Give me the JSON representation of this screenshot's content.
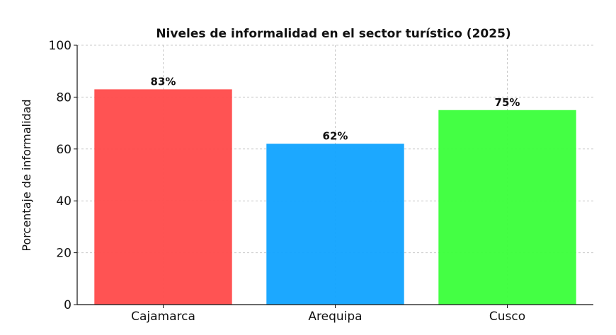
{
  "chart_data": {
    "type": "bar",
    "title": "Niveles de informalidad en el sector turístico (2025)",
    "xlabel": "",
    "ylabel": "Porcentaje de informalidad",
    "categories": [
      "Cajamarca",
      "Arequipa",
      "Cusco"
    ],
    "values": [
      83,
      62,
      75
    ],
    "data_labels": [
      "83%",
      "62%",
      "75%"
    ],
    "colors": [
      "#ff4c4c",
      "#13a4ff",
      "#3cff3c"
    ],
    "ylim": [
      0,
      100
    ],
    "yticks": [
      0,
      20,
      40,
      60,
      80,
      100
    ],
    "grid": true
  }
}
